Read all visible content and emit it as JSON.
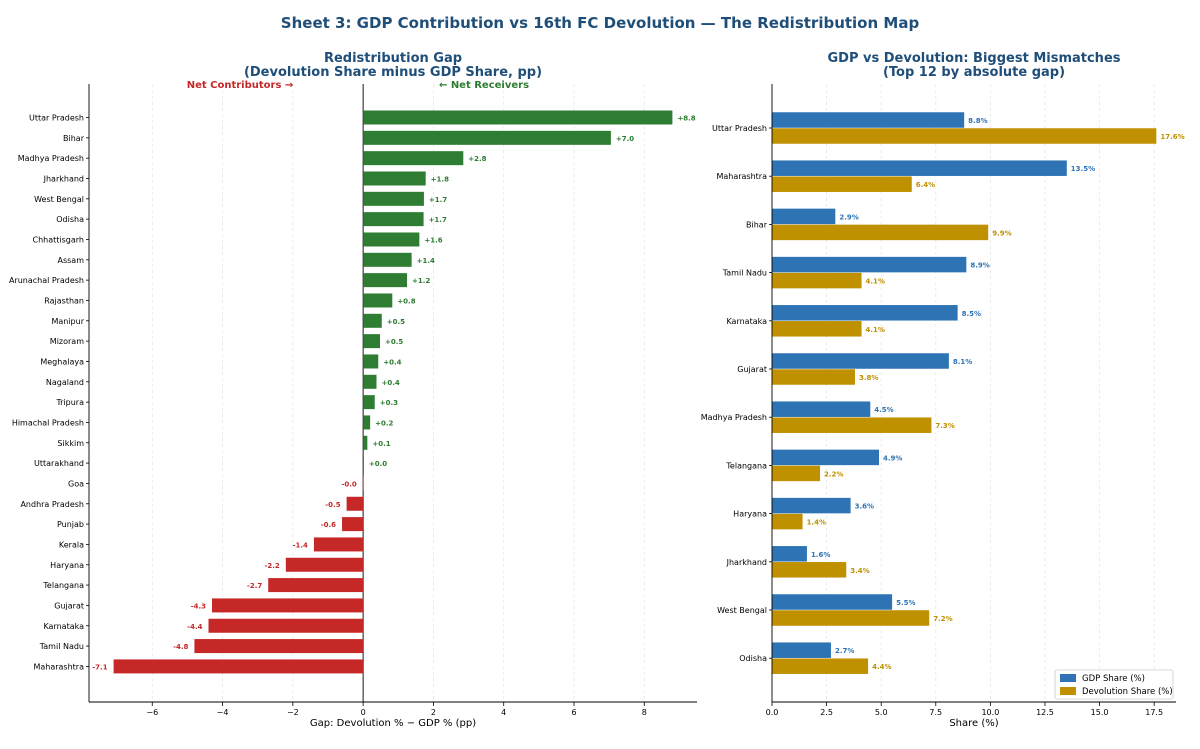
{
  "suptitle": "Sheet 3: GDP Contribution vs 16th FC Devolution — The Redistribution Map",
  "colors": {
    "title": "#1f4e79",
    "positive": "#2e7d32",
    "negative": "#c62828",
    "gdp": "#2e74b5",
    "devolution": "#bf9000",
    "axis": "#000000",
    "grid": "#e6e6e6"
  },
  "chart_data": [
    {
      "type": "bar",
      "orientation": "horizontal",
      "title": "Redistribution Gap",
      "subtitle": "(Devolution Share minus GDP Share, pp)",
      "xlabel": "Gap: Devolution % − GDP % (pp)",
      "ylabel": "",
      "xlim": [
        -7.8,
        9.5
      ],
      "xticks": [
        -6,
        -4,
        -2,
        0,
        2,
        4,
        6,
        8
      ],
      "xtick_labels": [
        "−6",
        "−4",
        "−2",
        "0",
        "2",
        "4",
        "6",
        "8"
      ],
      "grid": "x",
      "annotations": {
        "left": "Net Contributors →",
        "right": "← Net Receivers"
      },
      "categories": [
        "Uttar Pradesh",
        "Bihar",
        "Madhya Pradesh",
        "Jharkhand",
        "West Bengal",
        "Odisha",
        "Chhattisgarh",
        "Assam",
        "Arunachal Pradesh",
        "Rajasthan",
        "Manipur",
        "Mizoram",
        "Meghalaya",
        "Nagaland",
        "Tripura",
        "Himachal Pradesh",
        "Sikkim",
        "Uttarakhand",
        "Goa",
        "Andhra Pradesh",
        "Punjab",
        "Kerala",
        "Haryana",
        "Telangana",
        "Gujarat",
        "Karnataka",
        "Tamil Nadu",
        "Maharashtra"
      ],
      "values": [
        8.8,
        7.05,
        2.85,
        1.78,
        1.73,
        1.72,
        1.6,
        1.38,
        1.25,
        0.83,
        0.53,
        0.48,
        0.43,
        0.38,
        0.33,
        0.2,
        0.12,
        0.02,
        -0.01,
        -0.47,
        -0.6,
        -1.4,
        -2.2,
        -2.7,
        -4.3,
        -4.4,
        -4.8,
        -7.1
      ],
      "value_labels": [
        "+8.8",
        "+7.0",
        "+2.8",
        "+1.8",
        "+1.7",
        "+1.7",
        "+1.6",
        "+1.4",
        "+1.2",
        "+0.8",
        "+0.5",
        "+0.5",
        "+0.4",
        "+0.4",
        "+0.3",
        "+0.2",
        "+0.1",
        "+0.0",
        "-0.0",
        "-0.5",
        "-0.6",
        "-1.4",
        "-2.2",
        "-2.7",
        "-4.3",
        "-4.4",
        "-4.8",
        "-7.1"
      ]
    },
    {
      "type": "bar",
      "orientation": "horizontal",
      "title": "GDP vs Devolution: Biggest Mismatches",
      "subtitle": "(Top 12 by absolute gap)",
      "xlabel": "Share (%)",
      "ylabel": "",
      "xlim": [
        0,
        18.5
      ],
      "xticks": [
        0,
        2.5,
        5,
        7.5,
        10,
        12.5,
        15,
        17.5
      ],
      "xtick_labels": [
        "0.0",
        "2.5",
        "5.0",
        "7.5",
        "10.0",
        "12.5",
        "15.0",
        "17.5"
      ],
      "grid": "x",
      "legend": "bottom-right",
      "categories": [
        "Uttar Pradesh",
        "Maharashtra",
        "Bihar",
        "Tamil Nadu",
        "Karnataka",
        "Gujarat",
        "Madhya Pradesh",
        "Telangana",
        "Haryana",
        "Jharkhand",
        "West Bengal",
        "Odisha"
      ],
      "series": [
        {
          "name": "GDP Share (%)",
          "values": [
            8.8,
            13.5,
            2.9,
            8.9,
            8.5,
            8.1,
            4.5,
            4.9,
            3.6,
            1.6,
            5.5,
            2.7
          ],
          "labels": [
            "8.8%",
            "13.5%",
            "2.9%",
            "8.9%",
            "8.5%",
            "8.1%",
            "4.5%",
            "4.9%",
            "3.6%",
            "1.6%",
            "5.5%",
            "2.7%"
          ]
        },
        {
          "name": "Devolution Share (%)",
          "values": [
            17.6,
            6.4,
            9.9,
            4.1,
            4.1,
            3.8,
            7.3,
            2.2,
            1.4,
            3.4,
            7.2,
            4.4
          ],
          "labels": [
            "17.6%",
            "6.4%",
            "9.9%",
            "4.1%",
            "4.1%",
            "3.8%",
            "7.3%",
            "2.2%",
            "1.4%",
            "3.4%",
            "7.2%",
            "4.4%"
          ]
        }
      ]
    }
  ]
}
